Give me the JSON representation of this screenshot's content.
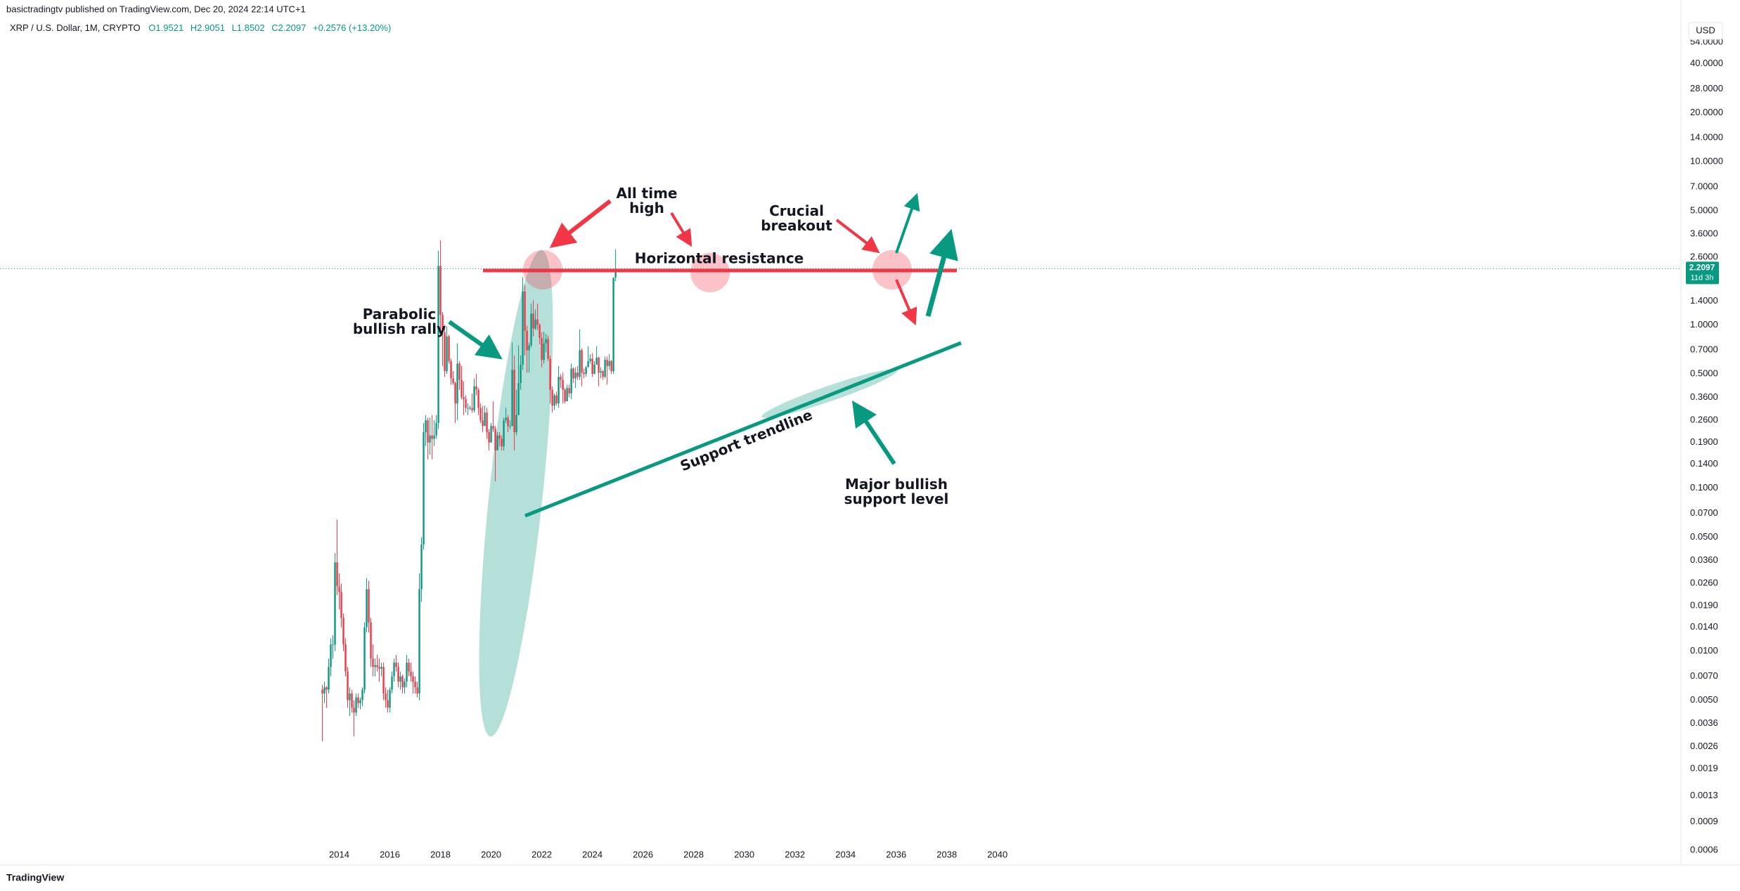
{
  "header": "basictradingtv published on TradingView.com, Dec 20, 2024 22:14 UTC+1",
  "symbol": "XRP / U.S. Dollar, 1M, CRYPTO",
  "legend": [
    "O1.9521",
    "H2.9051",
    "L1.8502",
    "C2.2097",
    "+0.2576 (+13.20%)"
  ],
  "currency": "USD",
  "countdown": "11d 3h",
  "brand": "TradingView",
  "annotations": {
    "all_time_high": [
      "All time",
      "high"
    ],
    "crucial_breakout": [
      "Crucial",
      "breakout"
    ],
    "horizontal_resistance": "Horizontal resistance",
    "parabolic": [
      "Parabolic",
      "bullish rally"
    ],
    "support_trendline": "Support trendline",
    "major_support": [
      "Major bullish",
      "support level"
    ]
  },
  "chart_data": {
    "type": "candlestick",
    "log_scale": true,
    "grid": false,
    "up_color": "#089981",
    "down_color": "#f23645",
    "last_price": 2.2097,
    "xlim": [
      2000.6,
      2067.0
    ],
    "xticks": [
      2014,
      2016,
      2018,
      2020,
      2022,
      2024,
      2026,
      2028,
      2030,
      2032,
      2034,
      2036,
      2038,
      2040
    ],
    "ylim": [
      0.000645,
      74.3
    ],
    "yticks": [
      {
        "value": 54,
        "label": "54.0000"
      },
      {
        "value": 40,
        "label": "40.0000"
      },
      {
        "value": 28,
        "label": "28.0000"
      },
      {
        "value": 20,
        "label": "20.0000"
      },
      {
        "value": 14,
        "label": "14.0000"
      },
      {
        "value": 10,
        "label": "10.0000"
      },
      {
        "value": 7,
        "label": "7.0000"
      },
      {
        "value": 5,
        "label": "5.0000"
      },
      {
        "value": 3.6,
        "label": "3.6000"
      },
      {
        "value": 2.6,
        "label": "2.6000"
      },
      {
        "value": 1.4,
        "label": "1.4000"
      },
      {
        "value": 1,
        "label": "1.0000"
      },
      {
        "value": 0.7,
        "label": "0.7000"
      },
      {
        "value": 0.5,
        "label": "0.5000"
      },
      {
        "value": 0.36,
        "label": "0.3600"
      },
      {
        "value": 0.26,
        "label": "0.2600"
      },
      {
        "value": 0.19,
        "label": "0.1900"
      },
      {
        "value": 0.14,
        "label": "0.1400"
      },
      {
        "value": 0.1,
        "label": "0.1000"
      },
      {
        "value": 0.07,
        "label": "0.0700"
      },
      {
        "value": 0.05,
        "label": "0.0500"
      },
      {
        "value": 0.036,
        "label": "0.0360"
      },
      {
        "value": 0.026,
        "label": "0.0260"
      },
      {
        "value": 0.019,
        "label": "0.0190"
      },
      {
        "value": 0.014,
        "label": "0.0140"
      },
      {
        "value": 0.01,
        "label": "0.0100"
      },
      {
        "value": 0.007,
        "label": "0.0070"
      },
      {
        "value": 0.005,
        "label": "0.0050"
      },
      {
        "value": 0.0036,
        "label": "0.0036"
      },
      {
        "value": 0.0026,
        "label": "0.0026"
      },
      {
        "value": 0.0019,
        "label": "0.0019"
      },
      {
        "value": 0.0013,
        "label": "0.0013"
      },
      {
        "value": 0.0009,
        "label": "0.0009"
      },
      {
        "value": 0.0006,
        "label": "0.0006"
      }
    ],
    "x": [
      "2013-05",
      "2013-06",
      "2013-07",
      "2013-08",
      "2013-09",
      "2013-10",
      "2013-11",
      "2013-12",
      "2014-01",
      "2014-02",
      "2014-03",
      "2014-04",
      "2014-05",
      "2014-06",
      "2014-07",
      "2014-08",
      "2014-09",
      "2014-10",
      "2014-11",
      "2014-12",
      "2015-01",
      "2015-02",
      "2015-03",
      "2015-04",
      "2015-05",
      "2015-06",
      "2015-07",
      "2015-08",
      "2015-09",
      "2015-10",
      "2015-11",
      "2015-12",
      "2016-01",
      "2016-02",
      "2016-03",
      "2016-04",
      "2016-05",
      "2016-06",
      "2016-07",
      "2016-08",
      "2016-09",
      "2016-10",
      "2016-11",
      "2016-12",
      "2017-01",
      "2017-02",
      "2017-03",
      "2017-04",
      "2017-05",
      "2017-06",
      "2017-07",
      "2017-08",
      "2017-09",
      "2017-10",
      "2017-11",
      "2017-12",
      "2018-01",
      "2018-02",
      "2018-03",
      "2018-04",
      "2018-05",
      "2018-06",
      "2018-07",
      "2018-08",
      "2018-09",
      "2018-10",
      "2018-11",
      "2018-12",
      "2019-01",
      "2019-02",
      "2019-03",
      "2019-04",
      "2019-05",
      "2019-06",
      "2019-07",
      "2019-08",
      "2019-09",
      "2019-10",
      "2019-11",
      "2019-12",
      "2020-01",
      "2020-02",
      "2020-03",
      "2020-04",
      "2020-05",
      "2020-06",
      "2020-07",
      "2020-08",
      "2020-09",
      "2020-10",
      "2020-11",
      "2020-12",
      "2021-01",
      "2021-02",
      "2021-03",
      "2021-04",
      "2021-05",
      "2021-06",
      "2021-07",
      "2021-08",
      "2021-09",
      "2021-10",
      "2021-11",
      "2021-12",
      "2022-01",
      "2022-02",
      "2022-03",
      "2022-04",
      "2022-05",
      "2022-06",
      "2022-07",
      "2022-08",
      "2022-09",
      "2022-10",
      "2022-11",
      "2022-12",
      "2023-01",
      "2023-02",
      "2023-03",
      "2023-04",
      "2023-05",
      "2023-06",
      "2023-07",
      "2023-08",
      "2023-09",
      "2023-10",
      "2023-11",
      "2023-12",
      "2024-01",
      "2024-02",
      "2024-03",
      "2024-04",
      "2024-05",
      "2024-06",
      "2024-07",
      "2024-08",
      "2024-09",
      "2024-10",
      "2024-11",
      "2024-12"
    ],
    "ohlc": [
      [
        0.0058,
        0.0062,
        0.0028,
        0.0055
      ],
      [
        0.0055,
        0.0065,
        0.0048,
        0.006
      ],
      [
        0.006,
        0.0061,
        0.0045,
        0.0058
      ],
      [
        0.0058,
        0.009,
        0.0055,
        0.008
      ],
      [
        0.008,
        0.012,
        0.007,
        0.011
      ],
      [
        0.011,
        0.0125,
        0.009,
        0.011
      ],
      [
        0.011,
        0.04,
        0.01,
        0.035
      ],
      [
        0.035,
        0.064,
        0.022,
        0.025
      ],
      [
        0.025,
        0.03,
        0.018,
        0.023
      ],
      [
        0.023,
        0.026,
        0.014,
        0.016
      ],
      [
        0.016,
        0.017,
        0.01,
        0.011
      ],
      [
        0.011,
        0.012,
        0.007,
        0.0075
      ],
      [
        0.0075,
        0.008,
        0.0045,
        0.005
      ],
      [
        0.005,
        0.006,
        0.004,
        0.0055
      ],
      [
        0.0055,
        0.0058,
        0.0042,
        0.0045
      ],
      [
        0.0045,
        0.005,
        0.003,
        0.0042
      ],
      [
        0.0042,
        0.0055,
        0.004,
        0.0052
      ],
      [
        0.0052,
        0.0055,
        0.0045,
        0.0048
      ],
      [
        0.0048,
        0.0052,
        0.0044,
        0.005
      ],
      [
        0.005,
        0.006,
        0.0046,
        0.0058
      ],
      [
        0.0058,
        0.015,
        0.0055,
        0.014
      ],
      [
        0.014,
        0.028,
        0.013,
        0.024
      ],
      [
        0.024,
        0.027,
        0.013,
        0.015
      ],
      [
        0.015,
        0.016,
        0.008,
        0.009
      ],
      [
        0.009,
        0.011,
        0.007,
        0.008
      ],
      [
        0.008,
        0.009,
        0.007,
        0.0082
      ],
      [
        0.0082,
        0.0095,
        0.0075,
        0.008
      ],
      [
        0.008,
        0.009,
        0.0065,
        0.0078
      ],
      [
        0.0078,
        0.0085,
        0.007,
        0.008
      ],
      [
        0.008,
        0.0085,
        0.005,
        0.0055
      ],
      [
        0.0055,
        0.006,
        0.0045,
        0.005
      ],
      [
        0.005,
        0.0058,
        0.0042,
        0.0045
      ],
      [
        0.0045,
        0.006,
        0.0042,
        0.0058
      ],
      [
        0.0058,
        0.0075,
        0.0055,
        0.007
      ],
      [
        0.007,
        0.009,
        0.0065,
        0.0085
      ],
      [
        0.0085,
        0.0095,
        0.0075,
        0.008
      ],
      [
        0.008,
        0.0085,
        0.006,
        0.0065
      ],
      [
        0.0065,
        0.0075,
        0.0058,
        0.007
      ],
      [
        0.007,
        0.0072,
        0.0055,
        0.006
      ],
      [
        0.006,
        0.0068,
        0.0055,
        0.0065
      ],
      [
        0.0065,
        0.0095,
        0.006,
        0.0085
      ],
      [
        0.0085,
        0.009,
        0.007,
        0.0075
      ],
      [
        0.0075,
        0.0085,
        0.0065,
        0.007
      ],
      [
        0.007,
        0.0075,
        0.0055,
        0.0065
      ],
      [
        0.0065,
        0.007,
        0.0055,
        0.006
      ],
      [
        0.006,
        0.0065,
        0.0052,
        0.0055
      ],
      [
        0.0055,
        0.03,
        0.005,
        0.024
      ],
      [
        0.024,
        0.05,
        0.02,
        0.045
      ],
      [
        0.045,
        0.25,
        0.042,
        0.22
      ],
      [
        0.22,
        0.28,
        0.18,
        0.26
      ],
      [
        0.26,
        0.27,
        0.15,
        0.19
      ],
      [
        0.19,
        0.27,
        0.16,
        0.21
      ],
      [
        0.21,
        0.28,
        0.15,
        0.2
      ],
      [
        0.2,
        0.26,
        0.18,
        0.21
      ],
      [
        0.21,
        0.28,
        0.2,
        0.25
      ],
      [
        0.25,
        2.85,
        0.23,
        2.3
      ],
      [
        2.3,
        3.3,
        0.9,
        1.15
      ],
      [
        1.15,
        1.2,
        0.56,
        0.9
      ],
      [
        0.9,
        1,
        0.48,
        0.52
      ],
      [
        0.52,
        0.98,
        0.5,
        0.85
      ],
      [
        0.85,
        0.87,
        0.58,
        0.6
      ],
      [
        0.6,
        0.62,
        0.43,
        0.47
      ],
      [
        0.47,
        0.52,
        0.43,
        0.44
      ],
      [
        0.44,
        0.45,
        0.25,
        0.33
      ],
      [
        0.33,
        0.77,
        0.26,
        0.58
      ],
      [
        0.58,
        0.6,
        0.4,
        0.46
      ],
      [
        0.46,
        0.56,
        0.35,
        0.36
      ],
      [
        0.36,
        0.45,
        0.28,
        0.35
      ],
      [
        0.35,
        0.37,
        0.29,
        0.31
      ],
      [
        0.31,
        0.33,
        0.28,
        0.31
      ],
      [
        0.31,
        0.32,
        0.3,
        0.31
      ],
      [
        0.31,
        0.38,
        0.29,
        0.3
      ],
      [
        0.3,
        0.47,
        0.29,
        0.42
      ],
      [
        0.42,
        0.5,
        0.37,
        0.4
      ],
      [
        0.4,
        0.41,
        0.28,
        0.31
      ],
      [
        0.31,
        0.33,
        0.25,
        0.26
      ],
      [
        0.26,
        0.32,
        0.22,
        0.24
      ],
      [
        0.24,
        0.32,
        0.24,
        0.29
      ],
      [
        0.29,
        0.31,
        0.2,
        0.22
      ],
      [
        0.22,
        0.23,
        0.17,
        0.19
      ],
      [
        0.19,
        0.25,
        0.19,
        0.24
      ],
      [
        0.24,
        0.34,
        0.22,
        0.23
      ],
      [
        0.23,
        0.24,
        0.11,
        0.17
      ],
      [
        0.17,
        0.22,
        0.17,
        0.21
      ],
      [
        0.21,
        0.22,
        0.18,
        0.2
      ],
      [
        0.2,
        0.21,
        0.17,
        0.18
      ],
      [
        0.18,
        0.27,
        0.17,
        0.26
      ],
      [
        0.26,
        0.31,
        0.25,
        0.27
      ],
      [
        0.27,
        0.28,
        0.22,
        0.24
      ],
      [
        0.24,
        0.26,
        0.23,
        0.24
      ],
      [
        0.24,
        0.78,
        0.24,
        0.53
      ],
      [
        0.53,
        0.65,
        0.17,
        0.22
      ],
      [
        0.22,
        0.4,
        0.21,
        0.28
      ],
      [
        0.28,
        0.75,
        0.28,
        0.44
      ],
      [
        0.44,
        0.65,
        0.4,
        0.57
      ],
      [
        0.57,
        1.96,
        0.53,
        1.6
      ],
      [
        1.6,
        1.75,
        0.65,
        0.92
      ],
      [
        0.92,
        0.99,
        0.51,
        0.7
      ],
      [
        0.7,
        0.78,
        0.51,
        0.75
      ],
      [
        0.75,
        1.35,
        0.73,
        1.17
      ],
      [
        1.17,
        1.41,
        0.85,
        0.95
      ],
      [
        0.95,
        1.24,
        0.93,
        1.08
      ],
      [
        1.08,
        1.35,
        0.93,
        1
      ],
      [
        1,
        1.02,
        0.76,
        0.83
      ],
      [
        0.83,
        0.9,
        0.55,
        0.61
      ],
      [
        0.61,
        0.91,
        0.58,
        0.77
      ],
      [
        0.77,
        0.88,
        0.68,
        0.82
      ],
      [
        0.82,
        0.86,
        0.6,
        0.62
      ],
      [
        0.62,
        0.65,
        0.33,
        0.4
      ],
      [
        0.4,
        0.42,
        0.29,
        0.32
      ],
      [
        0.32,
        0.38,
        0.3,
        0.37
      ],
      [
        0.37,
        0.39,
        0.32,
        0.33
      ],
      [
        0.33,
        0.56,
        0.31,
        0.48
      ],
      [
        0.48,
        0.5,
        0.41,
        0.46
      ],
      [
        0.46,
        0.51,
        0.33,
        0.4
      ],
      [
        0.4,
        0.41,
        0.33,
        0.34
      ],
      [
        0.34,
        0.43,
        0.34,
        0.41
      ],
      [
        0.41,
        0.43,
        0.36,
        0.38
      ],
      [
        0.38,
        0.58,
        0.35,
        0.54
      ],
      [
        0.54,
        0.55,
        0.44,
        0.47
      ],
      [
        0.47,
        0.55,
        0.41,
        0.51
      ],
      [
        0.51,
        0.56,
        0.46,
        0.48
      ],
      [
        0.48,
        0.94,
        0.46,
        0.7
      ],
      [
        0.7,
        0.72,
        0.42,
        0.51
      ],
      [
        0.51,
        0.54,
        0.47,
        0.5
      ],
      [
        0.5,
        0.56,
        0.48,
        0.55
      ],
      [
        0.55,
        0.74,
        0.55,
        0.6
      ],
      [
        0.6,
        0.66,
        0.58,
        0.62
      ],
      [
        0.62,
        0.67,
        0.48,
        0.5
      ],
      [
        0.5,
        0.6,
        0.5,
        0.57
      ],
      [
        0.57,
        0.74,
        0.57,
        0.63
      ],
      [
        0.63,
        0.64,
        0.42,
        0.51
      ],
      [
        0.51,
        0.55,
        0.47,
        0.52
      ],
      [
        0.52,
        0.53,
        0.46,
        0.48
      ],
      [
        0.48,
        0.64,
        0.47,
        0.61
      ],
      [
        0.61,
        0.64,
        0.43,
        0.56
      ],
      [
        0.56,
        0.66,
        0.53,
        0.6
      ],
      [
        0.6,
        0.61,
        0.5,
        0.52
      ],
      [
        0.52,
        1.95,
        0.5,
        1.95
      ],
      [
        1.9521,
        2.9051,
        1.8502,
        2.2097
      ]
    ]
  }
}
